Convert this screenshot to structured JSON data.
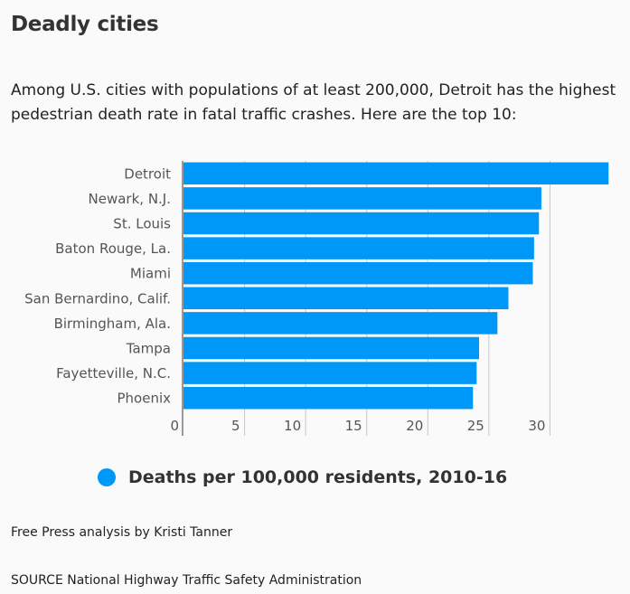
{
  "header": {
    "title": "Deadly cities",
    "subtitle": "Among U.S. cities with populations of at least 200,000, Detroit has the highest pedestrian death rate in fatal traffic crashes. Here are the top 10:"
  },
  "colors": {
    "bar": "#0098f8",
    "grid": "#c8c8c8",
    "axis": "#999999",
    "tick_text": "#555555"
  },
  "chart_data": {
    "type": "bar",
    "orientation": "horizontal",
    "categories": [
      "Detroit",
      "Newark, N.J.",
      "St. Louis",
      "Baton Rouge, La.",
      "Miami",
      "San Bernardino, Calif.",
      "Birmingham, Ala.",
      "Tampa",
      "Fayetteville, N.C.",
      "Phoenix"
    ],
    "series": [
      {
        "name": "Deaths per 100,000 residents, 2010-16",
        "values": [
          34.8,
          29.3,
          29.1,
          28.7,
          28.6,
          26.6,
          25.7,
          24.2,
          24.0,
          23.7
        ]
      }
    ],
    "xlim": [
      0,
      35
    ],
    "xticks": [
      0,
      5,
      10,
      15,
      20,
      25,
      30
    ],
    "xtick_labels": [
      "0",
      "5",
      "10",
      "15",
      "20",
      "25",
      "30"
    ],
    "grid": true,
    "legend_position": "bottom"
  },
  "legend": {
    "label": "Deaths per 100,000 residents, 2010-16"
  },
  "footer": {
    "credit": "Free Press analysis by Kristi Tanner",
    "source": "SOURCE National Highway Traffic Safety Administration"
  }
}
